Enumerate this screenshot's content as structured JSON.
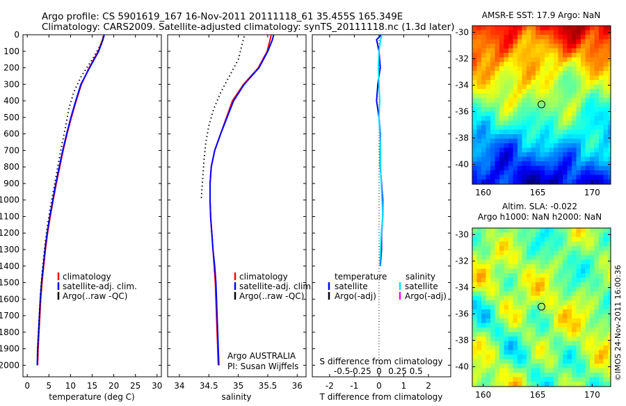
{
  "header": {
    "line1": "Argo profile: CS 5901619_167 16-Nov-2011 20111118_61 35.455S 165.349E",
    "line2": "Climatology: CARS2009. Satellite-adjusted climatology: synTS_20111118.nc (1.3d later)"
  },
  "colors": {
    "climatology": "#ff0000",
    "satellite": "#0000ff",
    "argo": "#000000",
    "sat_salinity": "#00e5ff",
    "argo_salinity": "#ff00ff"
  },
  "footer_credit": "©IMOS 24-Nov-2011 16:00:36",
  "chart_data": [
    {
      "type": "line",
      "id": "temperature",
      "xlabel": "temperature (deg C)",
      "xlim": [
        -1,
        31
      ],
      "ylim": [
        2070,
        0
      ],
      "xticks": [
        0,
        5,
        10,
        15,
        20,
        25,
        30
      ],
      "yticks": [
        0,
        100,
        200,
        300,
        400,
        500,
        600,
        700,
        800,
        900,
        1000,
        1100,
        1200,
        1300,
        1400,
        1500,
        1600,
        1700,
        1800,
        1900,
        2000
      ],
      "legend": [
        "climatology",
        "satellite-adj. clim.",
        "Argo(..raw -QC)"
      ],
      "series": [
        {
          "name": "climatology",
          "style": "solid",
          "x": [
            17.7,
            17.4,
            16.4,
            14.3,
            12.5,
            11.3,
            10.2,
            9.2,
            8.3,
            7.5,
            6.7,
            6.0,
            5.3,
            4.7,
            4.2,
            3.8,
            3.4,
            3.1,
            2.9,
            2.7,
            2.5,
            2.4
          ],
          "y": [
            0,
            30,
            100,
            200,
            300,
            400,
            500,
            600,
            700,
            800,
            900,
            1000,
            1100,
            1200,
            1300,
            1400,
            1500,
            1600,
            1700,
            1800,
            1900,
            2000
          ]
        },
        {
          "name": "satellite-adj. clim.",
          "style": "solid",
          "x": [
            17.8,
            17.5,
            16.5,
            14.4,
            12.4,
            11.2,
            10.1,
            9.1,
            8.2,
            7.4,
            6.6,
            5.9,
            5.2,
            4.6,
            4.1,
            3.7,
            3.3,
            3.0,
            2.8,
            2.6,
            2.4,
            2.3
          ],
          "y": [
            0,
            30,
            100,
            200,
            300,
            400,
            500,
            600,
            700,
            800,
            900,
            1000,
            1100,
            1200,
            1300,
            1400,
            1500,
            1600,
            1700,
            1800,
            1900,
            2000
          ]
        },
        {
          "name": "Argo(..raw -QC)",
          "style": "dotted",
          "x": [
            17.6,
            17.2,
            15.0,
            12.5,
            10.7,
            9.6,
            8.9,
            8.1,
            7.4,
            6.7,
            6.0,
            5.3,
            4.7,
            4.2,
            3.8,
            3.4,
            3.1,
            2.9,
            2.7,
            2.5,
            2.4
          ],
          "y": [
            10,
            50,
            150,
            250,
            350,
            450,
            550,
            650,
            750,
            850,
            950,
            1050,
            1150,
            1250,
            1350,
            1450,
            1550,
            1650,
            1750,
            1850,
            1950
          ]
        }
      ]
    },
    {
      "type": "line",
      "id": "salinity",
      "xlabel": "salinity",
      "xlim": [
        33.8,
        36.15
      ],
      "ylim": [
        2070,
        0
      ],
      "xticks": [
        34,
        34.5,
        35,
        35.5,
        36
      ],
      "legend": [
        "climatology",
        "satellite-adj. clim.",
        "Argo(..raw -QC)"
      ],
      "annotation": [
        "Argo AUSTRALIA",
        "PI: Susan Wijffels"
      ],
      "series": [
        {
          "name": "climatology",
          "style": "solid",
          "x": [
            35.56,
            35.54,
            35.49,
            35.34,
            35.09,
            34.9,
            34.8,
            34.7,
            34.6,
            34.54,
            34.52,
            34.52,
            34.53,
            34.55,
            34.57,
            34.59,
            34.61,
            34.62,
            34.63,
            34.64,
            34.65,
            34.66
          ],
          "y": [
            0,
            30,
            100,
            200,
            300,
            400,
            500,
            600,
            700,
            800,
            900,
            1000,
            1100,
            1200,
            1300,
            1400,
            1500,
            1600,
            1700,
            1800,
            1900,
            2000
          ]
        },
        {
          "name": "satellite-adj. clim.",
          "style": "solid",
          "x": [
            35.6,
            35.58,
            35.5,
            35.35,
            35.1,
            34.92,
            34.81,
            34.7,
            34.6,
            34.54,
            34.52,
            34.52,
            34.53,
            34.55,
            34.57,
            34.6,
            34.62,
            34.63,
            34.64,
            34.65,
            34.66,
            34.67
          ],
          "y": [
            0,
            30,
            100,
            200,
            300,
            400,
            500,
            600,
            700,
            800,
            900,
            1000,
            1100,
            1200,
            1300,
            1400,
            1500,
            1600,
            1700,
            1800,
            1900,
            2000
          ]
        },
        {
          "name": "Argo(..raw -QC)",
          "style": "dotted",
          "x": [
            35.1,
            35.07,
            35.0,
            34.85,
            34.7,
            34.58,
            34.5,
            34.45,
            34.42,
            34.4,
            34.38,
            34.37
          ],
          "y": [
            10,
            50,
            150,
            250,
            350,
            450,
            550,
            650,
            750,
            850,
            950,
            1000
          ]
        }
      ]
    },
    {
      "type": "line",
      "id": "differences",
      "xlabel": "T difference from climatology",
      "xlabel_top": "S difference from climatology",
      "xlim": [
        -2.7,
        2.9
      ],
      "ylim": [
        2070,
        0
      ],
      "xticks": [
        -2,
        -1,
        0,
        1,
        2
      ],
      "xtick_labels": [
        "-2",
        "-1",
        "0",
        "1",
        "2"
      ],
      "s_ticks": [
        -0.5,
        -0.25,
        0,
        0.25,
        0.5
      ],
      "s_tick_labels": [
        "-0.5",
        "-0.25",
        "0",
        "0.25",
        "0.5"
      ],
      "legend_headers": [
        "temperature",
        "salinity"
      ],
      "legend_temperature": [
        "satellite",
        "Argo(-adj)"
      ],
      "legend_salinity": [
        "satellite",
        "Argo(-adj)"
      ],
      "series": [
        {
          "name": "satellite",
          "quantity": "temperature",
          "style": "solid",
          "x": [
            0.1,
            -0.1,
            0.0,
            0.05,
            -0.05,
            -0.1,
            0.0,
            0.05,
            0.05,
            0.05,
            0.1,
            0.15,
            0.15,
            0.1,
            0.1,
            0.05
          ],
          "y": [
            0,
            30,
            100,
            200,
            300,
            400,
            500,
            600,
            700,
            800,
            900,
            1000,
            1100,
            1200,
            1300,
            1400
          ]
        },
        {
          "name": "satellite",
          "quantity": "salinity",
          "style": "solid",
          "x": [
            0.04,
            0.02,
            0.0,
            -0.01,
            0.0,
            0.01,
            0.0,
            0.01,
            0.02,
            0.02,
            0.03,
            0.04,
            0.05,
            0.03,
            0.02,
            0.01
          ],
          "y": [
            0,
            30,
            100,
            200,
            300,
            400,
            500,
            600,
            700,
            800,
            900,
            1000,
            1100,
            1200,
            1300,
            1400
          ]
        }
      ]
    },
    {
      "type": "heatmap",
      "id": "sst-map",
      "title": "AMSR-E SST: 17.9 Argo: NaN",
      "xlim": [
        159,
        171.7
      ],
      "ylim": [
        -41.5,
        -29.5
      ],
      "xticks": [
        160,
        165,
        170
      ],
      "yticks": [
        -30,
        -32,
        -34,
        -36,
        -38,
        -40
      ],
      "float_position": {
        "lon": 165.349,
        "lat": -35.455
      }
    },
    {
      "type": "heatmap",
      "id": "sla-map",
      "title": [
        "Altim. SLA: -0.022",
        "Argo h1000: NaN h2000: NaN"
      ],
      "xlim": [
        159,
        171.7
      ],
      "ylim": [
        -41.5,
        -29.5
      ],
      "xticks": [
        160,
        165,
        170
      ],
      "yticks": [
        -30,
        -32,
        -34,
        -36,
        -38,
        -40
      ],
      "float_position": {
        "lon": 165.349,
        "lat": -35.455
      }
    }
  ]
}
